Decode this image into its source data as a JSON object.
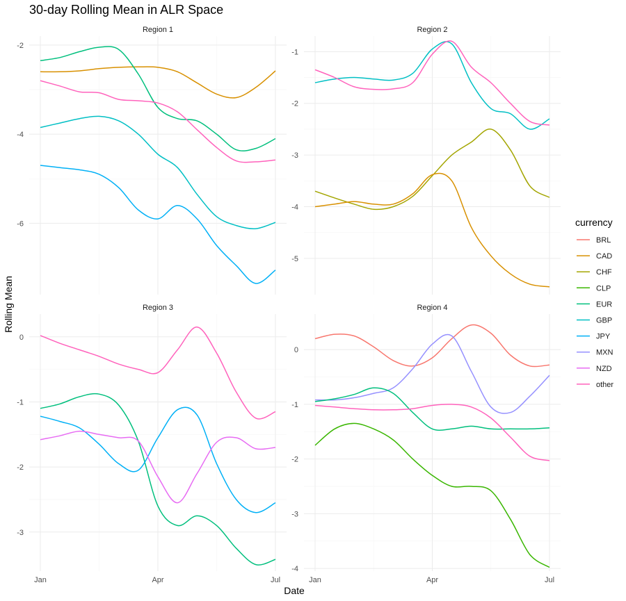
{
  "chart_data": {
    "type": "line",
    "title": "30-day Rolling Mean in ALR Space",
    "xlabel": "Date",
    "ylabel": "Rolling Mean",
    "legend_title": "currency",
    "legend_position": "right",
    "x_ticks": [
      "Jan",
      "Apr",
      "Jul"
    ],
    "colors": {
      "BRL": "#F8766D",
      "CAD": "#D89000",
      "CHF": "#A3A500",
      "CLP": "#39B600",
      "EUR": "#00BF7D",
      "GBP": "#00BFC4",
      "JPY": "#00B0F6",
      "MXN": "#9590FF",
      "NZD": "#E76BF3",
      "other": "#FF62BC"
    },
    "legend": [
      "BRL",
      "CAD",
      "CHF",
      "CLP",
      "EUR",
      "GBP",
      "JPY",
      "MXN",
      "NZD",
      "other"
    ],
    "x_months": [
      0,
      0.5,
      1,
      1.5,
      2,
      2.5,
      3,
      3.5,
      4,
      4.5,
      5,
      5.5,
      6
    ],
    "panels": [
      {
        "strip": "Region 1",
        "ylim": [
          -7.6,
          -1.8
        ],
        "yticks": [
          -6,
          -4,
          -2
        ],
        "ytick_labels": [
          "-6",
          "-4",
          "-2"
        ],
        "series": [
          {
            "name": "CAD",
            "values": [
              -2.6,
              -2.6,
              -2.58,
              -2.53,
              -2.5,
              -2.49,
              -2.5,
              -2.6,
              -2.85,
              -3.1,
              -3.18,
              -2.95,
              -2.58
            ]
          },
          {
            "name": "EUR",
            "values": [
              -2.35,
              -2.28,
              -2.15,
              -2.05,
              -2.1,
              -2.65,
              -3.4,
              -3.65,
              -3.7,
              -4.0,
              -4.35,
              -4.32,
              -4.1
            ]
          },
          {
            "name": "other",
            "values": [
              -2.8,
              -2.92,
              -3.05,
              -3.07,
              -3.22,
              -3.25,
              -3.3,
              -3.5,
              -3.9,
              -4.3,
              -4.6,
              -4.62,
              -4.58
            ]
          },
          {
            "name": "GBP",
            "values": [
              -3.85,
              -3.75,
              -3.65,
              -3.6,
              -3.7,
              -4.0,
              -4.45,
              -4.75,
              -5.35,
              -5.85,
              -6.05,
              -6.12,
              -5.98
            ]
          },
          {
            "name": "JPY",
            "values": [
              -4.7,
              -4.75,
              -4.8,
              -4.9,
              -5.2,
              -5.7,
              -5.9,
              -5.6,
              -5.9,
              -6.5,
              -6.95,
              -7.35,
              -7.05
            ]
          }
        ]
      },
      {
        "strip": "Region 2",
        "ylim": [
          -5.7,
          -0.7
        ],
        "yticks": [
          -5,
          -4,
          -3,
          -2,
          -1
        ],
        "ytick_labels": [
          "-5",
          "-4",
          "-3",
          "-2",
          "-1"
        ],
        "series": [
          {
            "name": "CHF",
            "values": [
              -3.7,
              -3.83,
              -3.95,
              -4.05,
              -4.0,
              -3.8,
              -3.4,
              -3.0,
              -2.75,
              -2.5,
              -2.9,
              -3.6,
              -3.82
            ]
          },
          {
            "name": "CAD",
            "values": [
              -4.0,
              -3.95,
              -3.9,
              -3.95,
              -3.95,
              -3.75,
              -3.38,
              -3.5,
              -4.4,
              -4.95,
              -5.3,
              -5.5,
              -5.55
            ]
          },
          {
            "name": "GBP",
            "values": [
              -1.6,
              -1.53,
              -1.5,
              -1.53,
              -1.55,
              -1.42,
              -0.95,
              -0.85,
              -1.6,
              -2.1,
              -2.2,
              -2.5,
              -2.3
            ]
          },
          {
            "name": "other",
            "values": [
              -1.35,
              -1.5,
              -1.68,
              -1.73,
              -1.72,
              -1.6,
              -1.05,
              -0.8,
              -1.3,
              -1.6,
              -2.0,
              -2.35,
              -2.42
            ]
          }
        ]
      },
      {
        "strip": "Region 3",
        "ylim": [
          -3.6,
          0.35
        ],
        "yticks": [
          -3,
          -2,
          -1,
          0
        ],
        "ytick_labels": [
          "-3",
          "-2",
          "-1",
          "0"
        ],
        "series": [
          {
            "name": "other",
            "values": [
              0.02,
              -0.1,
              -0.2,
              -0.3,
              -0.42,
              -0.5,
              -0.55,
              -0.2,
              0.15,
              -0.25,
              -0.85,
              -1.25,
              -1.15
            ]
          },
          {
            "name": "EUR",
            "values": [
              -1.1,
              -1.03,
              -0.92,
              -0.88,
              -1.05,
              -1.6,
              -2.6,
              -2.9,
              -2.75,
              -2.9,
              -3.25,
              -3.5,
              -3.42
            ]
          },
          {
            "name": "JPY",
            "values": [
              -1.22,
              -1.3,
              -1.4,
              -1.65,
              -1.95,
              -2.05,
              -1.55,
              -1.12,
              -1.2,
              -1.95,
              -2.5,
              -2.7,
              -2.55
            ]
          },
          {
            "name": "NZD",
            "values": [
              -1.58,
              -1.52,
              -1.45,
              -1.5,
              -1.55,
              -1.6,
              -2.15,
              -2.55,
              -2.1,
              -1.62,
              -1.55,
              -1.72,
              -1.7
            ]
          }
        ]
      },
      {
        "strip": "Region 4",
        "ylim": [
          -4.05,
          0.65
        ],
        "yticks": [
          -4,
          -3,
          -2,
          -1,
          0
        ],
        "ytick_labels": [
          "-4",
          "-3",
          "-2",
          "-1",
          "0"
        ],
        "series": [
          {
            "name": "BRL",
            "values": [
              0.2,
              0.28,
              0.25,
              0.05,
              -0.2,
              -0.3,
              -0.15,
              0.2,
              0.45,
              0.3,
              -0.1,
              -0.3,
              -0.28
            ]
          },
          {
            "name": "MXN",
            "values": [
              -0.92,
              -0.92,
              -0.88,
              -0.8,
              -0.7,
              -0.35,
              0.1,
              0.25,
              -0.4,
              -1.05,
              -1.15,
              -0.85,
              -0.47
            ]
          },
          {
            "name": "EUR",
            "values": [
              -0.95,
              -0.9,
              -0.82,
              -0.7,
              -0.8,
              -1.15,
              -1.45,
              -1.45,
              -1.4,
              -1.45,
              -1.45,
              -1.45,
              -1.43
            ]
          },
          {
            "name": "other",
            "values": [
              -1.02,
              -1.05,
              -1.08,
              -1.1,
              -1.1,
              -1.08,
              -1.02,
              -1.0,
              -1.05,
              -1.25,
              -1.6,
              -1.95,
              -2.03
            ]
          },
          {
            "name": "CLP",
            "values": [
              -1.75,
              -1.45,
              -1.35,
              -1.45,
              -1.65,
              -2.0,
              -2.3,
              -2.5,
              -2.5,
              -2.58,
              -3.1,
              -3.75,
              -3.98
            ]
          }
        ]
      }
    ]
  }
}
